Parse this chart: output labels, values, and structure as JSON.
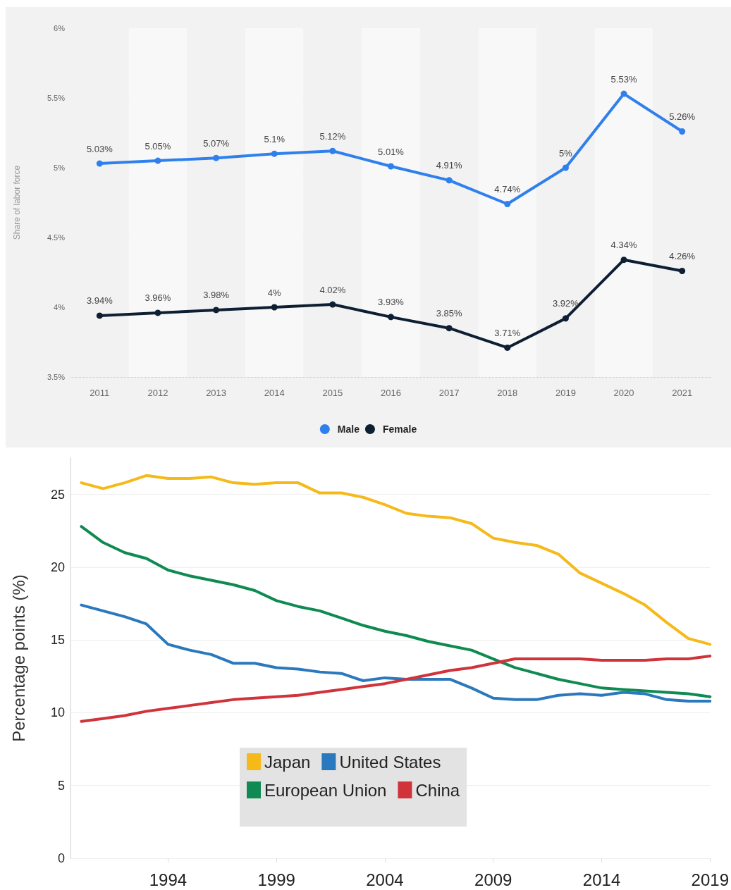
{
  "chart_data": [
    {
      "type": "line",
      "ylabel": "Share of labor force",
      "categories": [
        "2011",
        "2012",
        "2013",
        "2014",
        "2015",
        "2016",
        "2017",
        "2018",
        "2019",
        "2020",
        "2021"
      ],
      "series": [
        {
          "name": "Male",
          "color": "#2f80ed",
          "values": [
            5.03,
            5.05,
            5.07,
            5.1,
            5.12,
            5.01,
            4.91,
            4.74,
            5,
            5.53,
            5.26
          ],
          "value_labels": [
            "5.03%",
            "5.05%",
            "5.07%",
            "5.1%",
            "5.12%",
            "5.01%",
            "4.91%",
            "4.74%",
            "5%",
            "5.53%",
            "5.26%"
          ]
        },
        {
          "name": "Female",
          "color": "#0e1f33",
          "values": [
            3.94,
            3.96,
            3.98,
            4,
            4.02,
            3.93,
            3.85,
            3.71,
            3.92,
            4.34,
            4.26
          ],
          "value_labels": [
            "3.94%",
            "3.96%",
            "3.98%",
            "4%",
            "4.02%",
            "3.93%",
            "3.85%",
            "3.71%",
            "3.92%",
            "4.34%",
            "4.26%"
          ]
        }
      ],
      "ylim": [
        3.5,
        6
      ],
      "yticks": [
        {
          "value": 3.5,
          "label": "3.5%"
        },
        {
          "value": 4,
          "label": "4%"
        },
        {
          "value": 4.5,
          "label": "4.5%"
        },
        {
          "value": 5,
          "label": "5%"
        },
        {
          "value": 5.5,
          "label": "5.5%"
        },
        {
          "value": 6,
          "label": "6%"
        }
      ],
      "grid": "y",
      "legend": "bottom",
      "marker": "circle",
      "line_style": "solid"
    },
    {
      "type": "line",
      "ylabel": "Percentage points (%)",
      "x": [
        1990,
        1991,
        1992,
        1993,
        1994,
        1995,
        1996,
        1997,
        1998,
        1999,
        2000,
        2001,
        2002,
        2003,
        2004,
        2005,
        2006,
        2007,
        2008,
        2009,
        2010,
        2011,
        2012,
        2013,
        2014,
        2015,
        2016,
        2017,
        2018,
        2019
      ],
      "series": [
        {
          "name": "Japan",
          "color": "#f5b919",
          "values": [
            25.8,
            25.4,
            25.8,
            26.3,
            26.1,
            26.1,
            26.2,
            25.8,
            25.7,
            25.8,
            25.8,
            25.1,
            25.1,
            24.8,
            24.3,
            23.7,
            23.5,
            23.4,
            23.0,
            22.0,
            21.7,
            21.5,
            20.9,
            19.6,
            18.9,
            18.2,
            17.4,
            16.2,
            15.1,
            14.7
          ]
        },
        {
          "name": "United States",
          "color": "#2a78bd",
          "values": [
            17.4,
            17.0,
            16.6,
            16.1,
            14.7,
            14.3,
            14.0,
            13.4,
            13.4,
            13.1,
            13.0,
            12.8,
            12.7,
            12.2,
            12.4,
            12.3,
            12.3,
            12.3,
            11.7,
            11.0,
            10.9,
            10.9,
            11.2,
            11.3,
            11.2,
            11.4,
            11.3,
            10.9,
            10.8,
            10.8
          ]
        },
        {
          "name": "European Union",
          "color": "#0f8a52",
          "values": [
            22.8,
            21.7,
            21.0,
            20.6,
            19.8,
            19.4,
            19.1,
            18.8,
            18.4,
            17.7,
            17.3,
            17.0,
            16.5,
            16.0,
            15.6,
            15.3,
            14.9,
            14.6,
            14.3,
            13.7,
            13.1,
            12.7,
            12.3,
            12.0,
            11.7,
            11.6,
            11.5,
            11.4,
            11.3,
            11.1
          ]
        },
        {
          "name": "China",
          "color": "#d0333a",
          "values": [
            9.4,
            9.6,
            9.8,
            10.1,
            10.3,
            10.5,
            10.7,
            10.9,
            11.0,
            11.1,
            11.2,
            11.4,
            11.6,
            11.8,
            12.0,
            12.3,
            12.6,
            12.9,
            13.1,
            13.4,
            13.7,
            13.7,
            13.7,
            13.7,
            13.6,
            13.6,
            13.6,
            13.7,
            13.7,
            13.9
          ]
        }
      ],
      "xlim": [
        1989.5,
        2019
      ],
      "xticks": [
        1994,
        1999,
        2004,
        2009,
        2014,
        2019
      ],
      "ylim": [
        0,
        27.5
      ],
      "yticks": [
        0,
        5,
        10,
        15,
        20,
        25
      ],
      "grid": "y",
      "legend": "bottom",
      "marker": "none",
      "line_style": "solid"
    }
  ]
}
